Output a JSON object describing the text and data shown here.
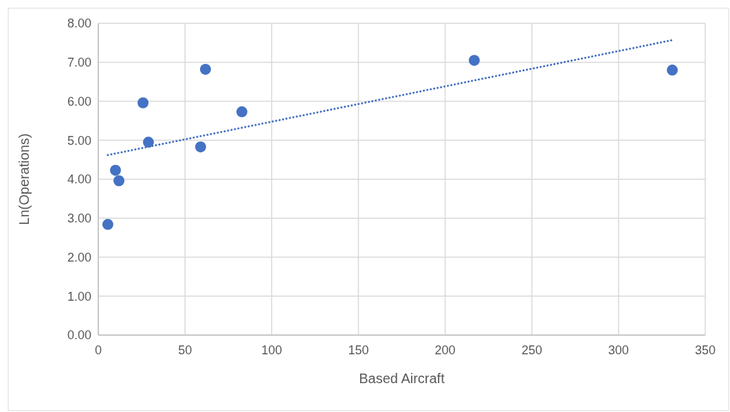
{
  "chart_data": {
    "type": "scatter",
    "xlabel": "Based Aircraft",
    "ylabel": "Ln(Operations)",
    "xlim": [
      0,
      350
    ],
    "xticks": [
      0,
      50,
      100,
      150,
      200,
      250,
      300,
      350
    ],
    "ylim": [
      0,
      8
    ],
    "yticks": [
      {
        "value": 0,
        "label": "0.00"
      },
      {
        "value": 1,
        "label": "1.00"
      },
      {
        "value": 2,
        "label": "2.00"
      },
      {
        "value": 3,
        "label": "3.00"
      },
      {
        "value": 4,
        "label": "4.00"
      },
      {
        "value": 5,
        "label": "5.00"
      },
      {
        "value": 6,
        "label": "6.00"
      },
      {
        "value": 7,
        "label": "7.00"
      },
      {
        "value": 8,
        "label": "8.00"
      }
    ],
    "grid": true,
    "marker": "circle",
    "series": [
      {
        "color": "#4472c4",
        "x": [
          5.5,
          9.9,
          11.9,
          25.8,
          28.9,
          59,
          61.8,
          82.8,
          216.8,
          331
        ],
        "values": [
          2.84,
          4.23,
          3.96,
          5.96,
          4.95,
          4.83,
          6.82,
          5.73,
          7.05,
          6.8
        ]
      },
      {
        "type": "line",
        "color": "#4472c4",
        "line_style": "dotted",
        "marker": "none",
        "x": [
          5.5,
          331
        ],
        "values": [
          4.62,
          7.57
        ]
      }
    ]
  }
}
